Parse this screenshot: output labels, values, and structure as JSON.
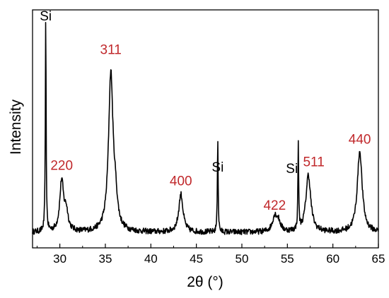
{
  "chart_data": {
    "type": "line",
    "title": "",
    "xlabel": "2θ (°)",
    "ylabel": "Intensity",
    "xlim": [
      27,
      65
    ],
    "ylim": [
      0,
      1
    ],
    "xticks": [
      30,
      35,
      40,
      45,
      50,
      55,
      60,
      65
    ],
    "yticks_shown": false,
    "grid": false,
    "legend": "none",
    "line_color": "#000000",
    "baseline": 0.065,
    "noise": 0.012,
    "peaks": [
      {
        "center": 28.45,
        "height": 0.9,
        "width": 0.05
      },
      {
        "center": 30.2,
        "height": 0.21,
        "width": 0.25
      },
      {
        "center": 30.7,
        "height": 0.08,
        "width": 0.25
      },
      {
        "center": 35.6,
        "height": 0.66,
        "width": 0.3
      },
      {
        "center": 36.1,
        "height": 0.1,
        "width": 0.25
      },
      {
        "center": 43.3,
        "height": 0.16,
        "width": 0.28
      },
      {
        "center": 47.35,
        "height": 0.4,
        "width": 0.05
      },
      {
        "center": 53.6,
        "height": 0.06,
        "width": 0.3
      },
      {
        "center": 54.0,
        "height": 0.04,
        "width": 0.3
      },
      {
        "center": 56.2,
        "height": 0.36,
        "width": 0.05
      },
      {
        "center": 57.3,
        "height": 0.24,
        "width": 0.32
      },
      {
        "center": 62.95,
        "height": 0.34,
        "width": 0.32
      }
    ],
    "annotations": [
      {
        "text": "Si",
        "x": 28.45,
        "y": 0.955,
        "kind": "si"
      },
      {
        "text": "311",
        "x": 35.6,
        "y": 0.815,
        "kind": "hkl"
      },
      {
        "text": "220",
        "x": 30.2,
        "y": 0.328,
        "kind": "hkl"
      },
      {
        "text": "400",
        "x": 43.3,
        "y": 0.262,
        "kind": "hkl"
      },
      {
        "text": "Si",
        "x": 47.35,
        "y": 0.32,
        "kind": "si"
      },
      {
        "text": "422",
        "x": 53.6,
        "y": 0.16,
        "kind": "hkl"
      },
      {
        "text": "Si",
        "x": 55.5,
        "y": 0.314,
        "kind": "si"
      },
      {
        "text": "511",
        "x": 57.9,
        "y": 0.342,
        "kind": "hkl"
      },
      {
        "text": "440",
        "x": 62.95,
        "y": 0.438,
        "kind": "hkl"
      }
    ]
  }
}
